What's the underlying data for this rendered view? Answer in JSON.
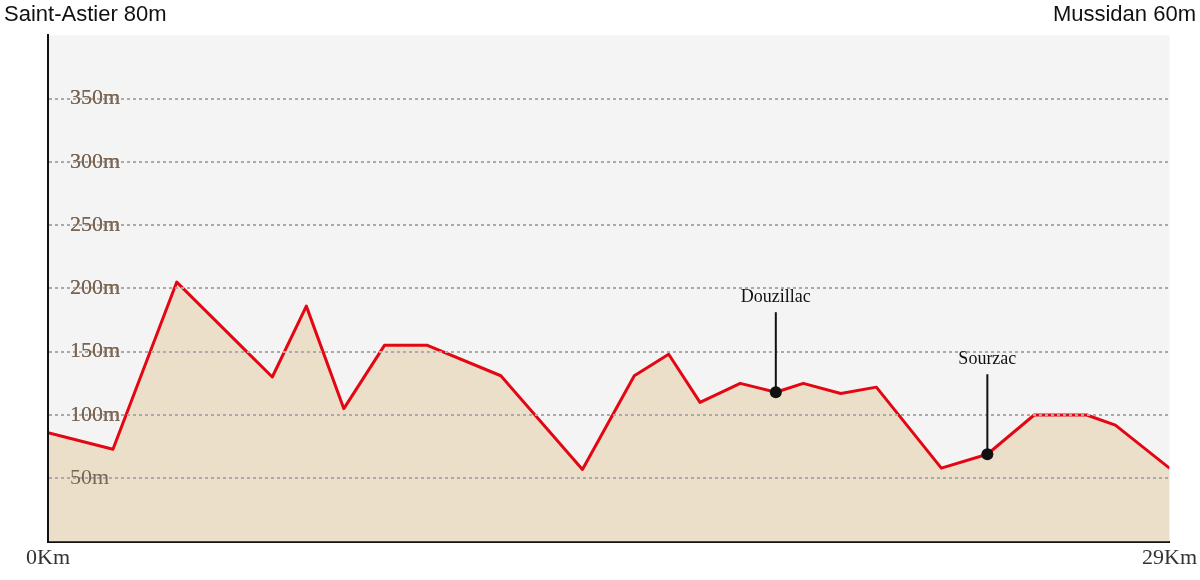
{
  "chart_data": {
    "type": "area",
    "x": [
      0,
      1.68,
      3.33,
      5.8,
      6.68,
      7.65,
      8.7,
      9.81,
      11.71,
      13.82,
      15.16,
      16.05,
      16.86,
      17.9,
      18.82,
      19.53,
      20.5,
      21.42,
      23.1,
      24.29,
      25.5,
      26.86,
      27.6,
      29
    ],
    "series": [
      {
        "color": "#e30613",
        "values": [
          86,
          73,
          205,
          130,
          186,
          105,
          155,
          155,
          131,
          57,
          131,
          148,
          110,
          125,
          118,
          125,
          117,
          122,
          58,
          69,
          100,
          100,
          92,
          58
        ]
      }
    ],
    "xlim": [
      0,
      29
    ],
    "xticks": [
      {
        "value": 0,
        "label": "0Km"
      },
      {
        "value": 29,
        "label": "29Km"
      }
    ],
    "ylim": [
      0,
      400
    ],
    "yticks": [
      {
        "value": 50,
        "label": "50m"
      },
      {
        "value": 100,
        "label": "100m"
      },
      {
        "value": 150,
        "label": "150m"
      },
      {
        "value": 200,
        "label": "200m"
      },
      {
        "value": 250,
        "label": "250m"
      },
      {
        "value": 300,
        "label": "300m"
      },
      {
        "value": 350,
        "label": "350m"
      }
    ],
    "grid": "y",
    "line_style": "solid",
    "marker": "none",
    "annotations": [
      "Saint-Astier 80m",
      "Mussidan 60m",
      {
        "text": "Douzillac",
        "x": 18.82,
        "y": 118
      },
      {
        "text": "Sourzac",
        "x": 24.29,
        "y": 69
      }
    ]
  }
}
